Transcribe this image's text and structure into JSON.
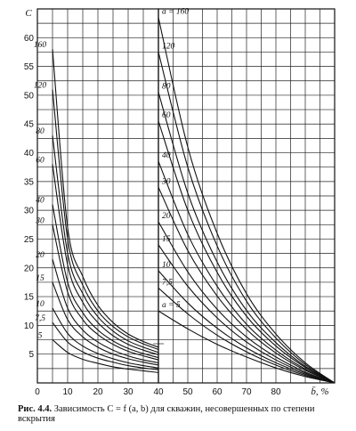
{
  "chart_data": [
    {
      "type": "line",
      "panel": "left",
      "ylabel": "C",
      "xlabel": "",
      "xlim": [
        0,
        40
      ],
      "ylim": [
        0,
        65
      ],
      "x_ticks": [
        "0",
        "10",
        "20",
        "30",
        "40"
      ],
      "y_ticks": [
        "5",
        "10",
        "15",
        "20",
        "25",
        "30",
        "35",
        "40",
        "45",
        "50",
        "55",
        "60"
      ],
      "series": [
        {
          "name": "160",
          "x": [
            5,
            10,
            15,
            20,
            25,
            30,
            35,
            40
          ],
          "values": [
            58,
            27,
            18.5,
            13.5,
            10.5,
            8.5,
            7.2,
            6.2
          ]
        },
        {
          "name": "120",
          "x": [
            5,
            10,
            15,
            20,
            25,
            30,
            35,
            40
          ],
          "values": [
            51,
            25,
            17,
            12.5,
            9.8,
            8,
            6.8,
            5.8
          ]
        },
        {
          "name": "80",
          "x": [
            5,
            10,
            15,
            20,
            25,
            30,
            35,
            40
          ],
          "values": [
            43,
            22.5,
            15.5,
            11.5,
            9,
            7.3,
            6.2,
            5.3
          ]
        },
        {
          "name": "60",
          "x": [
            5,
            10,
            15,
            20,
            25,
            30,
            35,
            40
          ],
          "values": [
            38,
            20.5,
            14,
            10.5,
            8.2,
            6.7,
            5.7,
            4.9
          ]
        },
        {
          "name": "40",
          "x": [
            5,
            10,
            15,
            20,
            25,
            30,
            35,
            40
          ],
          "values": [
            31,
            17.5,
            12.2,
            9.2,
            7.3,
            6,
            5.1,
            4.4
          ]
        },
        {
          "name": "30",
          "x": [
            5,
            10,
            15,
            20,
            25,
            30,
            35,
            40
          ],
          "values": [
            27.5,
            15.8,
            11,
            8.4,
            6.7,
            5.5,
            4.7,
            4
          ]
        },
        {
          "name": "20",
          "x": [
            5,
            10,
            15,
            20,
            25,
            30,
            35,
            40
          ],
          "values": [
            21.5,
            13,
            9.2,
            7.1,
            5.7,
            4.7,
            4,
            3.5
          ]
        },
        {
          "name": "15",
          "x": [
            5,
            10,
            15,
            20,
            25,
            30,
            35,
            40
          ],
          "values": [
            17.5,
            11,
            8,
            6.2,
            5,
            4.2,
            3.6,
            3.1
          ]
        },
        {
          "name": "10",
          "x": [
            5,
            10,
            15,
            20,
            25,
            30,
            35,
            40
          ],
          "values": [
            13,
            8.6,
            6.4,
            5.1,
            4.2,
            3.5,
            3,
            2.6
          ]
        },
        {
          "name": "7,5",
          "x": [
            5,
            10,
            15,
            20,
            25,
            30,
            35,
            40
          ],
          "values": [
            10.5,
            7.1,
            5.4,
            4.3,
            3.6,
            3,
            2.6,
            2.3
          ]
        },
        {
          "name": "5",
          "x": [
            5,
            10,
            15,
            20,
            25,
            30,
            35,
            40
          ],
          "values": [
            7.5,
            5.3,
            4.1,
            3.4,
            2.8,
            2.4,
            2.1,
            1.8
          ]
        }
      ]
    },
    {
      "type": "line",
      "panel": "right",
      "ylabel": "",
      "xlabel": "b̄, %",
      "xlim": [
        40,
        100
      ],
      "ylim": [
        0,
        65
      ],
      "x_ticks": [
        "50",
        "60",
        "70",
        "80"
      ],
      "series": [
        {
          "name": "a = 160",
          "x": [
            40,
            50,
            60,
            70,
            80,
            90,
            100
          ],
          "values": [
            63.5,
            41,
            26,
            15.5,
            8.5,
            3.5,
            0
          ]
        },
        {
          "name": "120",
          "x": [
            40,
            50,
            60,
            70,
            80,
            90,
            100
          ],
          "values": [
            57.5,
            37.5,
            23.8,
            14.2,
            7.8,
            3.2,
            0
          ]
        },
        {
          "name": "80",
          "x": [
            40,
            50,
            60,
            70,
            80,
            90,
            100
          ],
          "values": [
            50.5,
            33,
            21,
            12.6,
            7,
            2.9,
            0
          ]
        },
        {
          "name": "60",
          "x": [
            40,
            50,
            60,
            70,
            80,
            90,
            100
          ],
          "values": [
            45.5,
            30,
            19.2,
            11.6,
            6.4,
            2.7,
            0
          ]
        },
        {
          "name": "40",
          "x": [
            40,
            50,
            60,
            70,
            80,
            90,
            100
          ],
          "values": [
            38.5,
            25.8,
            16.8,
            10.2,
            5.7,
            2.4,
            0
          ]
        },
        {
          "name": "30",
          "x": [
            40,
            50,
            60,
            70,
            80,
            90,
            100
          ],
          "values": [
            34,
            23,
            15.1,
            9.3,
            5.2,
            2.2,
            0
          ]
        },
        {
          "name": "20",
          "x": [
            40,
            50,
            60,
            70,
            80,
            90,
            100
          ],
          "values": [
            28,
            19.3,
            12.8,
            8,
            4.5,
            1.9,
            0
          ]
        },
        {
          "name": "15",
          "x": [
            40,
            50,
            60,
            70,
            80,
            90,
            100
          ],
          "values": [
            24,
            16.8,
            11.3,
            7.1,
            4,
            1.7,
            0
          ]
        },
        {
          "name": "10",
          "x": [
            40,
            50,
            60,
            70,
            80,
            90,
            100
          ],
          "values": [
            19.5,
            13.9,
            9.5,
            6.1,
            3.5,
            1.5,
            0
          ]
        },
        {
          "name": "7,5",
          "x": [
            40,
            50,
            60,
            70,
            80,
            90,
            100
          ],
          "values": [
            16.5,
            12,
            8.3,
            5.4,
            3.1,
            1.3,
            0
          ]
        },
        {
          "name": "a = 5",
          "x": [
            40,
            50,
            60,
            70,
            80,
            90,
            100
          ],
          "values": [
            12.5,
            9.4,
            6.7,
            4.5,
            2.6,
            1.1,
            0
          ]
        }
      ]
    }
  ],
  "caption": {
    "figure": "Рис. 4.4.",
    "text": "Зависимость C = f (a, b) для скважин, несовершенных по степени вскрытия"
  }
}
